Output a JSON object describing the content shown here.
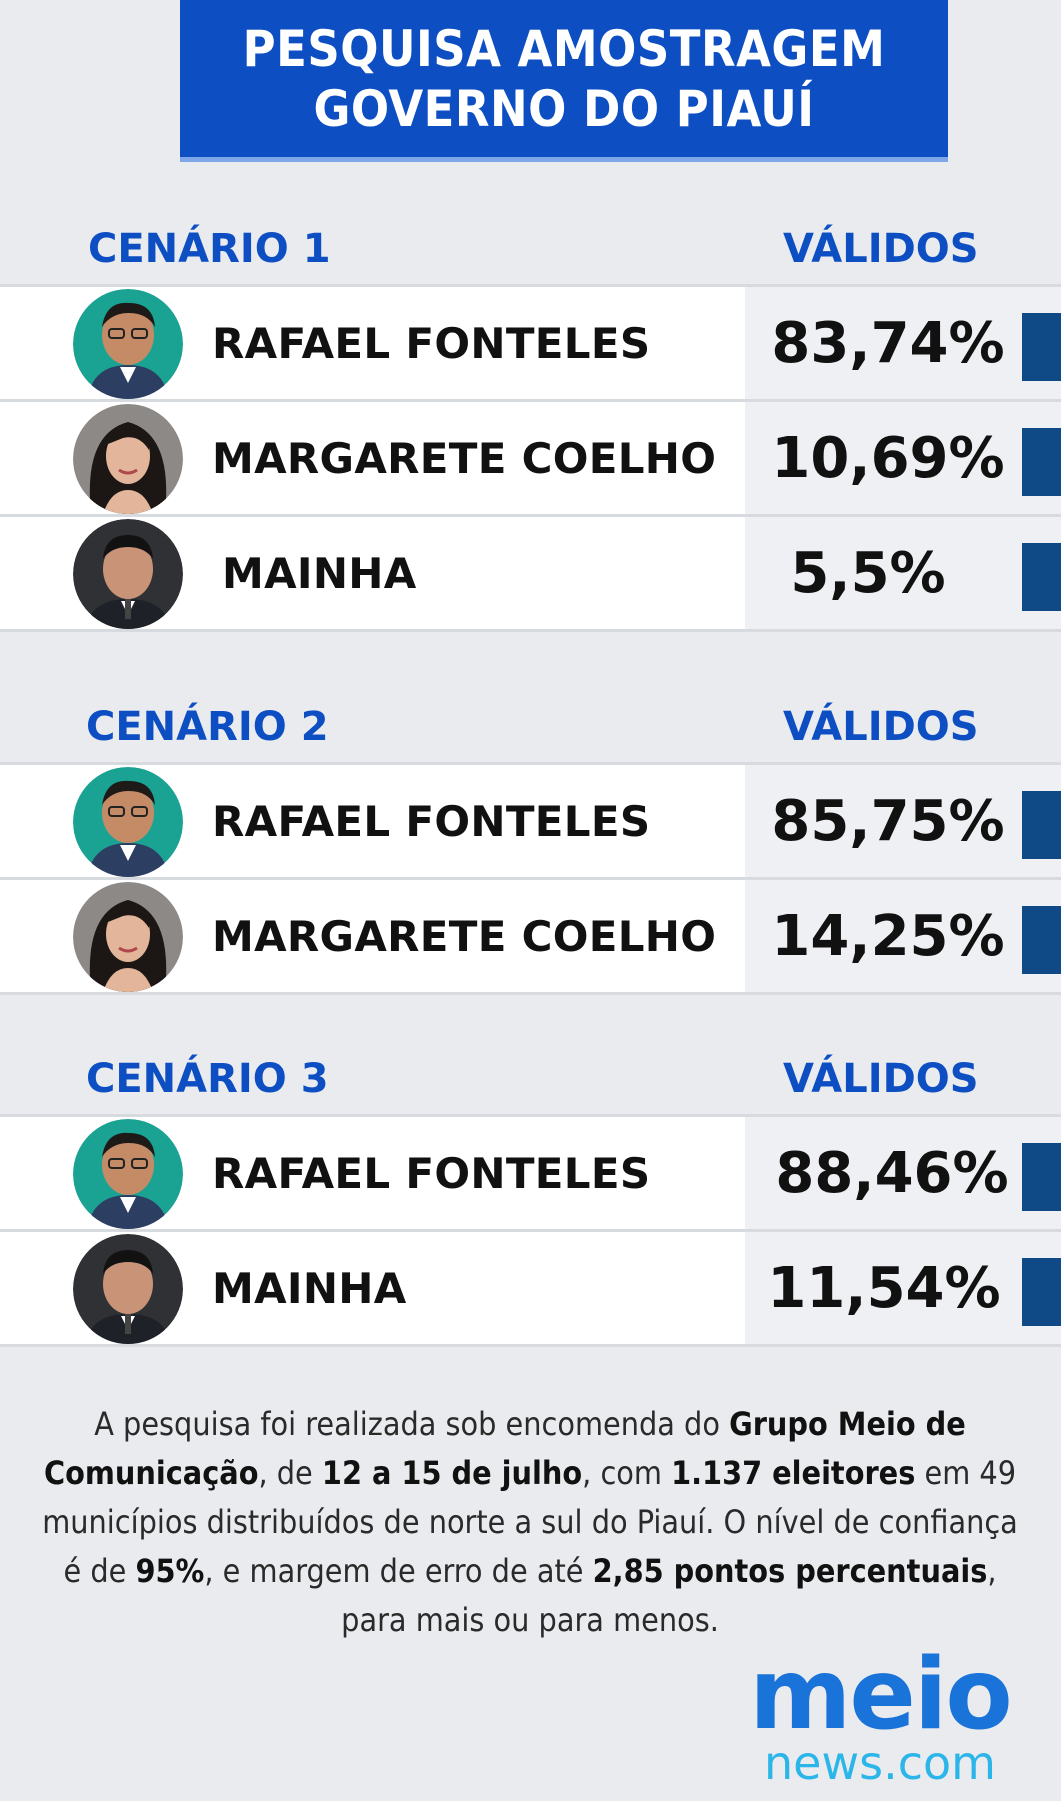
{
  "header": {
    "line1": "PESQUISA AMOSTRAGEM",
    "line2": "GOVERNO DO PIAUÍ",
    "color": "#0d4fc3"
  },
  "scenarios": [
    {
      "title": "CENÁRIO 1",
      "validos": "VÁLIDOS",
      "rows": [
        {
          "name": "RAFAEL FONTELES",
          "pct": "83,74%",
          "avatar": "rafael-avatar"
        },
        {
          "name": "MARGARETE COELHO",
          "pct": "10,69%",
          "avatar": "margarete-avatar"
        },
        {
          "name": "MAINHA",
          "pct": "5,5%",
          "avatar": "mainha-avatar"
        }
      ]
    },
    {
      "title": "CENÁRIO 2",
      "validos": "VÁLIDOS",
      "rows": [
        {
          "name": "RAFAEL FONTELES",
          "pct": "85,75%",
          "avatar": "rafael-avatar"
        },
        {
          "name": "MARGARETE COELHO",
          "pct": "14,25%",
          "avatar": "margarete-avatar"
        }
      ]
    },
    {
      "title": "CENÁRIO 3",
      "validos": "VÁLIDOS",
      "rows": [
        {
          "name": "RAFAEL FONTELES",
          "pct": "88,46%",
          "avatar": "rafael-avatar"
        },
        {
          "name": "MAINHA",
          "pct": "11,54%",
          "avatar": "mainha-avatar"
        }
      ]
    }
  ],
  "note": {
    "p1": "A pesquisa foi realizada sob encomenda do ",
    "b1": "Grupo Meio de Comunicação",
    "p2": ", de ",
    "b2": "12 a 15 de julho",
    "p3": ", com ",
    "b3": "1.137 eleitores",
    "p4": " em 49 municípios distribuídos de norte a sul do Piauí. O nível de confiança é de ",
    "b4": "95%",
    "p5": ", e margem de erro de até ",
    "b5": "2,85 pontos percentuais",
    "p6": ", para mais ou para menos."
  },
  "logo": {
    "word1": "meio",
    "word2": "news.com",
    "color1": "#1a73d8",
    "color2": "#2bb5e8"
  },
  "colors": {
    "accent": "#0d4fc3",
    "bar": "#0f4a86",
    "background": "#e9ebee"
  }
}
